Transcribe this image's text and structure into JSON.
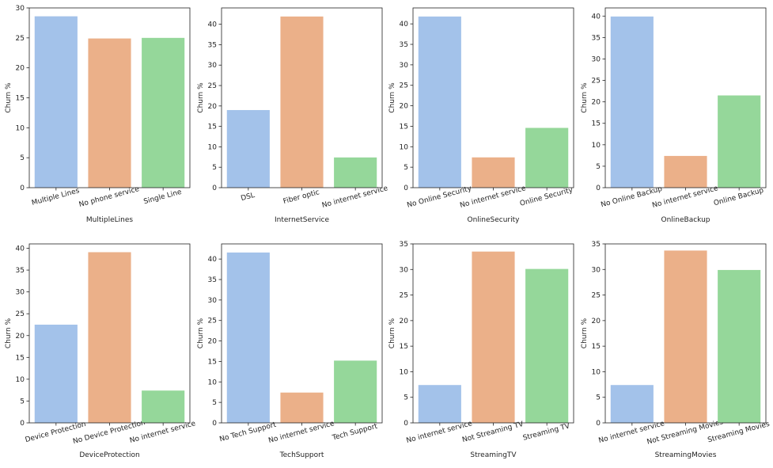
{
  "chart_data": [
    {
      "type": "bar",
      "xlabel": "MultipleLines",
      "ylabel": "Churn %",
      "categories": [
        "Multiple Lines",
        "No phone service",
        "Single Line"
      ],
      "values": [
        28.6,
        24.9,
        25.0
      ],
      "colors": [
        "#a3c2ea",
        "#ebb089",
        "#95d79a"
      ],
      "ylim": [
        0,
        30
      ],
      "yticks": [
        0,
        5,
        10,
        15,
        20,
        25,
        30
      ]
    },
    {
      "type": "bar",
      "xlabel": "InternetService",
      "ylabel": "Churn %",
      "categories": [
        "DSL",
        "Fiber optic",
        "No internet service"
      ],
      "values": [
        19.0,
        41.9,
        7.4
      ],
      "colors": [
        "#a3c2ea",
        "#ebb089",
        "#95d79a"
      ],
      "ylim": [
        0,
        44
      ],
      "yticks": [
        0,
        5,
        10,
        15,
        20,
        25,
        30,
        35,
        40
      ]
    },
    {
      "type": "bar",
      "xlabel": "OnlineSecurity",
      "ylabel": "Churn %",
      "categories": [
        "No Online Security",
        "No internet service",
        "Online Security"
      ],
      "values": [
        41.8,
        7.4,
        14.6
      ],
      "colors": [
        "#a3c2ea",
        "#ebb089",
        "#95d79a"
      ],
      "ylim": [
        0,
        43.9
      ],
      "yticks": [
        0,
        5,
        10,
        15,
        20,
        25,
        30,
        35,
        40
      ]
    },
    {
      "type": "bar",
      "xlabel": "OnlineBackup",
      "ylabel": "Churn %",
      "categories": [
        "No Online Backup",
        "No internet service",
        "Online Backup"
      ],
      "values": [
        39.9,
        7.4,
        21.5
      ],
      "colors": [
        "#a3c2ea",
        "#ebb089",
        "#95d79a"
      ],
      "ylim": [
        0,
        41.9
      ],
      "yticks": [
        0,
        5,
        10,
        15,
        20,
        25,
        30,
        35,
        40
      ]
    },
    {
      "type": "bar",
      "xlabel": "DeviceProtection",
      "ylabel": "Churn %",
      "categories": [
        "Device Protection",
        "No Device Protection",
        "No internet service"
      ],
      "values": [
        22.5,
        39.1,
        7.4
      ],
      "colors": [
        "#a3c2ea",
        "#ebb089",
        "#95d79a"
      ],
      "ylim": [
        0,
        41
      ],
      "yticks": [
        0,
        5,
        10,
        15,
        20,
        25,
        30,
        35,
        40
      ]
    },
    {
      "type": "bar",
      "xlabel": "TechSupport",
      "ylabel": "Churn %",
      "categories": [
        "No Tech Support",
        "No internet service",
        "Tech Support"
      ],
      "values": [
        41.6,
        7.4,
        15.2
      ],
      "colors": [
        "#a3c2ea",
        "#ebb089",
        "#95d79a"
      ],
      "ylim": [
        0,
        43.7
      ],
      "yticks": [
        0,
        5,
        10,
        15,
        20,
        25,
        30,
        35,
        40
      ]
    },
    {
      "type": "bar",
      "xlabel": "StreamingTV",
      "ylabel": "Churn %",
      "categories": [
        "No internet service",
        "Not Streaming TV",
        "Streaming TV"
      ],
      "values": [
        7.4,
        33.5,
        30.1
      ],
      "colors": [
        "#a3c2ea",
        "#ebb089",
        "#95d79a"
      ],
      "ylim": [
        0,
        35
      ],
      "yticks": [
        0,
        5,
        10,
        15,
        20,
        25,
        30,
        35
      ]
    },
    {
      "type": "bar",
      "xlabel": "StreamingMovies",
      "ylabel": "Churn %",
      "categories": [
        "No internet service",
        "Not Streaming Movies",
        "Streaming Movies"
      ],
      "values": [
        7.4,
        33.7,
        29.9
      ],
      "colors": [
        "#a3c2ea",
        "#ebb089",
        "#95d79a"
      ],
      "ylim": [
        0,
        35
      ],
      "yticks": [
        0,
        5,
        10,
        15,
        20,
        25,
        30,
        35
      ]
    }
  ]
}
